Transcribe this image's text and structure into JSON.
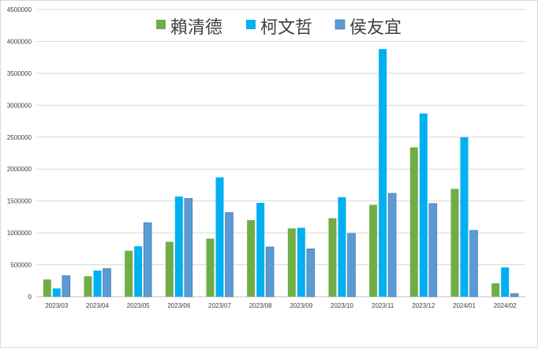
{
  "chart_data": {
    "type": "bar",
    "categories": [
      "2023/03",
      "2023/04",
      "2023/05",
      "2023/06",
      "2023/07",
      "2023/08",
      "2023/09",
      "2023/10",
      "2023/11",
      "2023/12",
      "2024/01",
      "2024/02"
    ],
    "series": [
      {
        "name": "賴清德",
        "color": "#70ad47",
        "values": [
          270000,
          320000,
          720000,
          860000,
          910000,
          1200000,
          1070000,
          1230000,
          1440000,
          2340000,
          1690000,
          210000
        ]
      },
      {
        "name": "柯文哲",
        "color": "#00b0f0",
        "values": [
          130000,
          410000,
          790000,
          1570000,
          1870000,
          1470000,
          1080000,
          1560000,
          3880000,
          2870000,
          2500000,
          460000
        ]
      },
      {
        "name": "侯友宜",
        "color": "#5b9bd5",
        "values": [
          330000,
          440000,
          1160000,
          1540000,
          1320000,
          780000,
          750000,
          990000,
          1620000,
          1460000,
          1040000,
          50000
        ]
      }
    ],
    "ylim": [
      0,
      4500000
    ],
    "yticks": [
      "0",
      "500000",
      "1000000",
      "1500000",
      "2000000",
      "2500000",
      "3000000",
      "3500000",
      "4000000",
      "4500000"
    ],
    "grid": true,
    "legend_position": "top"
  }
}
